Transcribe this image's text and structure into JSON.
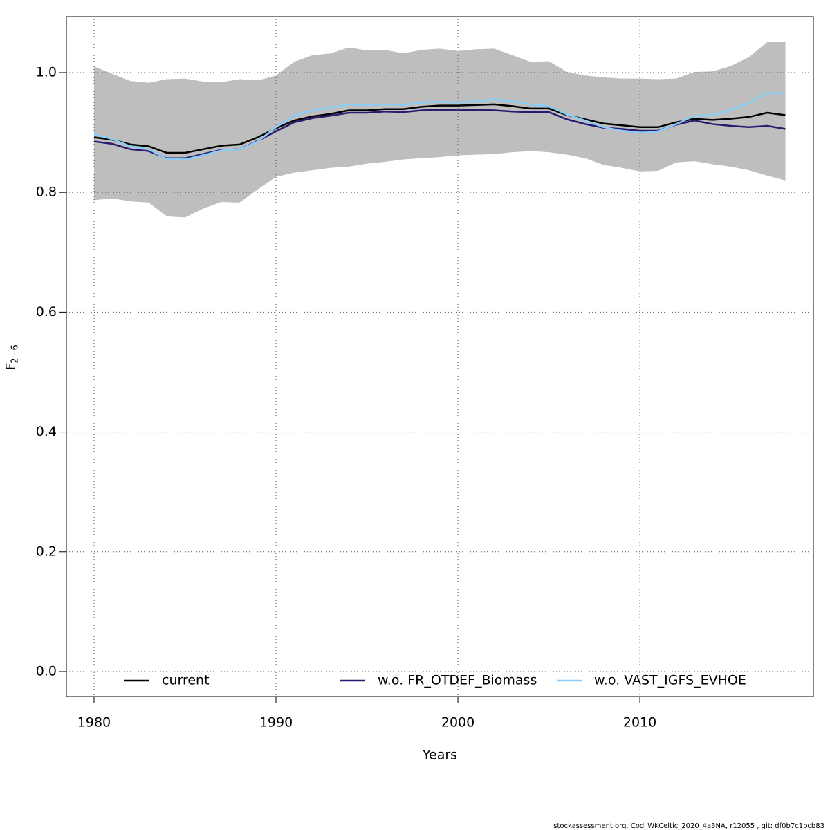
{
  "chart_data": {
    "type": "line",
    "xlabel": "Years",
    "ylabel": "F",
    "ylabel_sub": "2−6",
    "footer": "stockassessment.org, Cod_WKCeltic_2020_4a3NA, r12055 , git: df0b7c1bcb83",
    "x": [
      1980,
      1981,
      1982,
      1983,
      1984,
      1985,
      1986,
      1987,
      1988,
      1989,
      1990,
      1991,
      1992,
      1993,
      1994,
      1995,
      1996,
      1997,
      1998,
      1999,
      2000,
      2001,
      2002,
      2003,
      2004,
      2005,
      2006,
      2007,
      2008,
      2009,
      2010,
      2011,
      2012,
      2013,
      2014,
      2015,
      2016,
      2017,
      2018
    ],
    "band": {
      "color": "#bebebe",
      "upper": [
        1.01,
        0.998,
        0.986,
        0.983,
        0.989,
        0.99,
        0.985,
        0.984,
        0.989,
        0.987,
        0.995,
        1.018,
        1.029,
        1.032,
        1.042,
        1.037,
        1.038,
        1.032,
        1.038,
        1.04,
        1.036,
        1.039,
        1.04,
        1.029,
        1.018,
        1.019,
        1.001,
        0.995,
        0.992,
        0.99,
        0.99,
        0.989,
        0.99,
        1.001,
        1.002,
        1.011,
        1.026,
        1.051,
        1.052
      ],
      "lower": [
        0.787,
        0.79,
        0.785,
        0.783,
        0.76,
        0.758,
        0.773,
        0.784,
        0.783,
        0.805,
        0.826,
        0.833,
        0.837,
        0.841,
        0.843,
        0.848,
        0.851,
        0.855,
        0.857,
        0.859,
        0.862,
        0.863,
        0.864,
        0.867,
        0.869,
        0.867,
        0.863,
        0.857,
        0.846,
        0.841,
        0.835,
        0.836,
        0.85,
        0.852,
        0.847,
        0.843,
        0.837,
        0.828,
        0.82
      ]
    },
    "series": [
      {
        "name": "current",
        "color": "#000000",
        "values": [
          0.892,
          0.888,
          0.88,
          0.877,
          0.866,
          0.866,
          0.872,
          0.878,
          0.88,
          0.892,
          0.907,
          0.92,
          0.927,
          0.931,
          0.937,
          0.937,
          0.939,
          0.939,
          0.943,
          0.945,
          0.945,
          0.946,
          0.947,
          0.944,
          0.94,
          0.94,
          0.929,
          0.922,
          0.915,
          0.912,
          0.909,
          0.909,
          0.917,
          0.923,
          0.921,
          0.923,
          0.926,
          0.933,
          0.929
        ]
      },
      {
        "name": "w.o. FR_OTDEF_Biomass",
        "color": "#2b1a6e",
        "values": [
          0.885,
          0.881,
          0.872,
          0.869,
          0.857,
          0.857,
          0.864,
          0.871,
          0.872,
          0.886,
          0.902,
          0.917,
          0.924,
          0.928,
          0.933,
          0.933,
          0.935,
          0.934,
          0.937,
          0.938,
          0.937,
          0.938,
          0.937,
          0.935,
          0.934,
          0.934,
          0.922,
          0.914,
          0.908,
          0.906,
          0.903,
          0.903,
          0.913,
          0.92,
          0.914,
          0.911,
          0.909,
          0.911,
          0.906
        ]
      },
      {
        "name": "w.o. VAST_IGFS_EVHOE",
        "color": "#87cefa",
        "values": [
          0.897,
          0.889,
          0.877,
          0.872,
          0.856,
          0.855,
          0.862,
          0.87,
          0.872,
          0.885,
          0.909,
          0.928,
          0.937,
          0.941,
          0.947,
          0.946,
          0.947,
          0.946,
          0.95,
          0.951,
          0.95,
          0.952,
          0.955,
          0.952,
          0.947,
          0.944,
          0.93,
          0.92,
          0.909,
          0.903,
          0.899,
          0.902,
          0.914,
          0.928,
          0.929,
          0.938,
          0.949,
          0.966,
          0.965
        ]
      }
    ],
    "xlim": [
      1978.48,
      2019.54
    ],
    "xticks": [
      1980,
      1990,
      2000,
      2010
    ],
    "ylim": [
      -0.0416,
      1.0935
    ],
    "yticks": [
      {
        "value": 0,
        "label": "0.0"
      },
      {
        "value": 0.2,
        "label": "0.2"
      },
      {
        "value": 0.4,
        "label": "0.4"
      },
      {
        "value": 0.6,
        "label": "0.6"
      },
      {
        "value": 0.8,
        "label": "0.8"
      },
      {
        "value": 1.0,
        "label": "1.0"
      }
    ],
    "grid": true,
    "legend": "bottom"
  }
}
